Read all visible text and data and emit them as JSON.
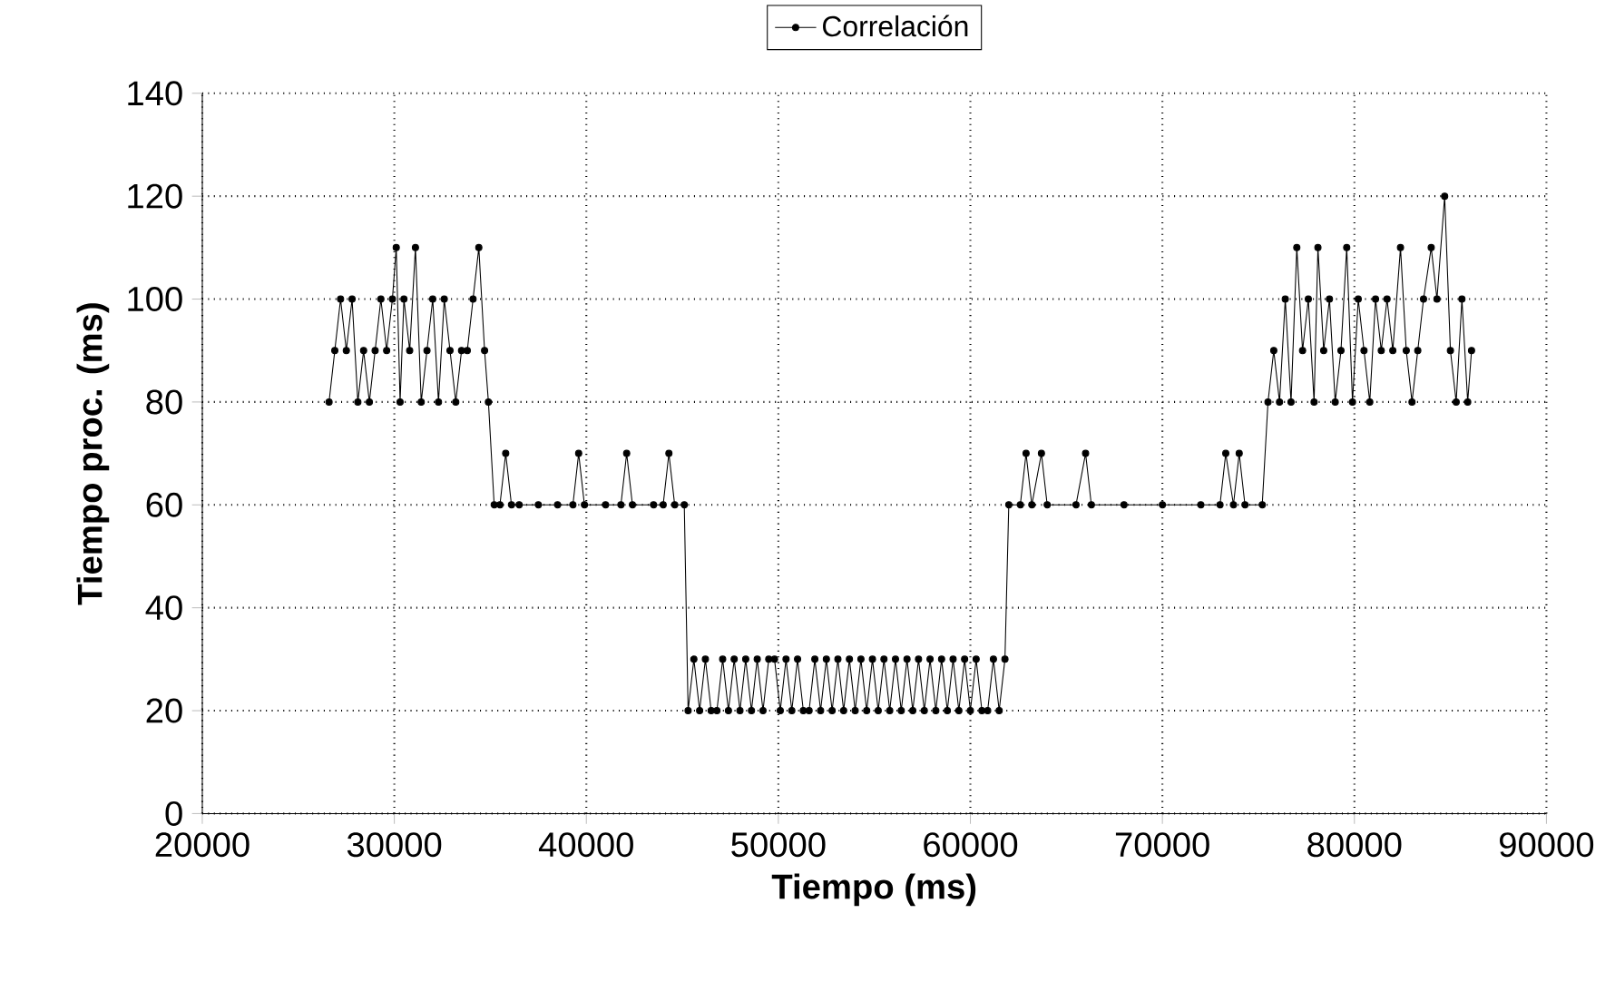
{
  "chart_data": {
    "type": "line",
    "xlabel": "Tiempo (ms)",
    "ylabel": "Tiempo proc. (ms)",
    "xlim": [
      20000,
      90000
    ],
    "xticks": [
      20000,
      30000,
      40000,
      50000,
      60000,
      70000,
      80000,
      90000
    ],
    "ylim": [
      0,
      140
    ],
    "yticks": [
      0,
      20,
      40,
      60,
      80,
      100,
      120,
      140
    ],
    "grid": true,
    "legend": "top",
    "marker": "circle",
    "line_style": "solid",
    "series": [
      {
        "name": "Correlación",
        "color": "#000000",
        "x": [
          26600,
          26900,
          27200,
          27500,
          27800,
          28100,
          28400,
          28700,
          29000,
          29300,
          29600,
          29900,
          30100,
          30300,
          30500,
          30800,
          31100,
          31400,
          31700,
          32000,
          32300,
          32600,
          32900,
          33200,
          33500,
          33800,
          34100,
          34400,
          34700,
          34900,
          35200,
          35500,
          35800,
          36100,
          36500,
          37500,
          38500,
          39300,
          39600,
          39900,
          41000,
          41800,
          42100,
          42400,
          43500,
          44000,
          44300,
          44600,
          45100,
          45300,
          45600,
          45900,
          46200,
          46500,
          46800,
          47100,
          47400,
          47700,
          48000,
          48300,
          48600,
          48900,
          49200,
          49500,
          49800,
          50100,
          50400,
          50700,
          51000,
          51300,
          51600,
          51900,
          52200,
          52500,
          52800,
          53100,
          53400,
          53700,
          54000,
          54300,
          54600,
          54900,
          55200,
          55500,
          55800,
          56100,
          56400,
          56700,
          57000,
          57300,
          57600,
          57900,
          58200,
          58500,
          58800,
          59100,
          59400,
          59700,
          60000,
          60300,
          60600,
          60900,
          61200,
          61500,
          61800,
          62000,
          62600,
          62900,
          63200,
          63700,
          64000,
          65500,
          66000,
          66300,
          68000,
          70000,
          72000,
          73000,
          73300,
          73700,
          74000,
          74300,
          75200,
          75500,
          75800,
          76100,
          76400,
          76700,
          77000,
          77300,
          77600,
          77900,
          78100,
          78400,
          78700,
          79000,
          79300,
          79600,
          79900,
          80200,
          80500,
          80800,
          81100,
          81400,
          81700,
          82000,
          82400,
          82700,
          83000,
          83300,
          83600,
          84000,
          84300,
          84700,
          85000,
          85300,
          85600,
          85900,
          86100
        ],
        "values": [
          80,
          90,
          100,
          90,
          100,
          80,
          90,
          80,
          90,
          100,
          90,
          100,
          110,
          80,
          100,
          90,
          110,
          80,
          90,
          100,
          80,
          100,
          90,
          80,
          90,
          90,
          100,
          110,
          90,
          80,
          60,
          60,
          70,
          60,
          60,
          60,
          60,
          60,
          70,
          60,
          60,
          60,
          70,
          60,
          60,
          60,
          70,
          60,
          60,
          20,
          30,
          20,
          30,
          20,
          20,
          30,
          20,
          30,
          20,
          30,
          20,
          30,
          20,
          30,
          30,
          20,
          30,
          20,
          30,
          20,
          20,
          30,
          20,
          30,
          20,
          30,
          20,
          30,
          20,
          30,
          20,
          30,
          20,
          30,
          20,
          30,
          20,
          30,
          20,
          30,
          20,
          30,
          20,
          30,
          20,
          30,
          20,
          30,
          20,
          30,
          20,
          20,
          30,
          20,
          30,
          60,
          60,
          70,
          60,
          70,
          60,
          60,
          70,
          60,
          60,
          60,
          60,
          60,
          70,
          60,
          70,
          60,
          60,
          80,
          90,
          80,
          100,
          80,
          110,
          90,
          100,
          80,
          110,
          90,
          100,
          80,
          90,
          110,
          80,
          100,
          90,
          80,
          100,
          90,
          100,
          90,
          110,
          90,
          80,
          90,
          100,
          110,
          100,
          120,
          90,
          80,
          100,
          80,
          90
        ]
      }
    ]
  }
}
